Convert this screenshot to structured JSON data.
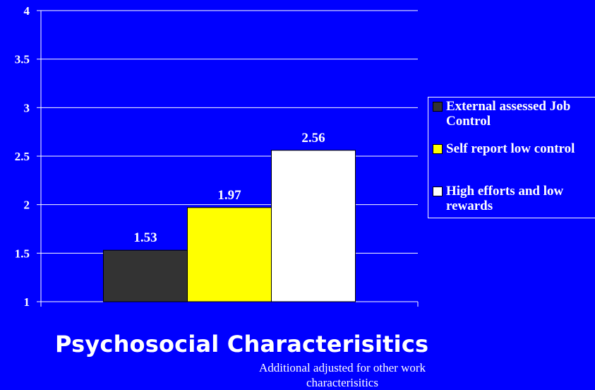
{
  "chart_data": {
    "type": "bar",
    "categories": [
      ""
    ],
    "series": [
      {
        "name": "External assessed Job Control",
        "values": [
          1.53
        ],
        "color": "#333333"
      },
      {
        "name": "Self report low control",
        "values": [
          1.97
        ],
        "color": "#ffff00"
      },
      {
        "name": "High efforts and low rewards",
        "values": [
          2.56
        ],
        "color": "#ffffff"
      }
    ],
    "data_labels": [
      "1.53",
      "1.97",
      "2.56"
    ],
    "ylim": [
      1,
      4
    ],
    "yticks": [
      1,
      1.5,
      2,
      2.5,
      3,
      3.5,
      4
    ],
    "ytick_labels": [
      "1",
      "1.5",
      "2",
      "2.5",
      "3",
      "3.5",
      "4"
    ],
    "grid": true,
    "legend_position": "right",
    "title": "Psychosocial Characterisitics",
    "subtitle": "Additional adjusted for other work characterisitics"
  },
  "colors": {
    "background": "#0000ff",
    "gridline": "#ffffff",
    "text": "#ffffff"
  }
}
